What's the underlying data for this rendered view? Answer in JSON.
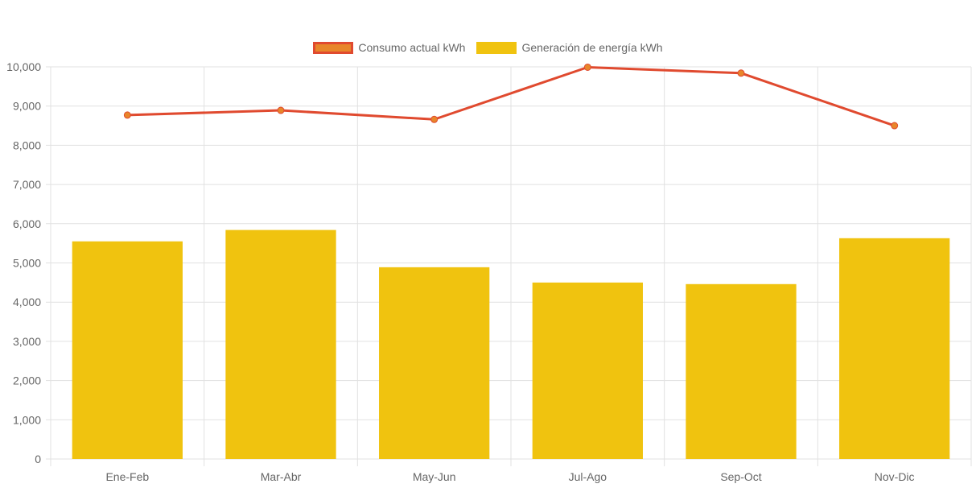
{
  "chart_data": {
    "type": "bar",
    "categories": [
      "Ene-Feb",
      "Mar-Abr",
      "May-Jun",
      "Jul-Ago",
      "Sep-Oct",
      "Nov-Dic"
    ],
    "series": [
      {
        "name": "Consumo actual kWh",
        "type": "line",
        "values": [
          8770,
          8890,
          8660,
          9990,
          9840,
          8500
        ],
        "color": "#e04a2f",
        "point_color": "#e8862a"
      },
      {
        "name": "Generación de energía kWh",
        "type": "bar",
        "values": [
          5550,
          5840,
          4890,
          4500,
          4460,
          5630
        ],
        "color": "#f0c30f"
      }
    ],
    "ylim": [
      0,
      10000
    ],
    "yticks": [
      "0",
      "1,000",
      "2,000",
      "3,000",
      "4,000",
      "5,000",
      "6,000",
      "7,000",
      "8,000",
      "9,000",
      "10,000"
    ],
    "ytick_values": [
      0,
      1000,
      2000,
      3000,
      4000,
      5000,
      6000,
      7000,
      8000,
      9000,
      10000
    ],
    "grid": true,
    "legend_position": "top-center",
    "title": "",
    "xlabel": "",
    "ylabel": ""
  },
  "legend": {
    "line_label": "Consumo actual kWh",
    "bar_label": "Generación de energía kWh",
    "line_swatch_fill": "#e8862a",
    "line_swatch_border": "#e04a2f",
    "bar_swatch_fill": "#f0c30f"
  },
  "colors": {
    "grid": "#e1e1e1",
    "axis_text": "#666666"
  }
}
